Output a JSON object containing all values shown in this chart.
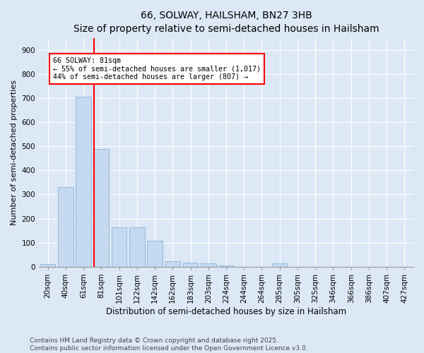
{
  "title1": "66, SOLWAY, HAILSHAM, BN27 3HB",
  "title2": "Size of property relative to semi-detached houses in Hailsham",
  "xlabel": "Distribution of semi-detached houses by size in Hailsham",
  "ylabel": "Number of semi-detached properties",
  "bar_labels": [
    "20sqm",
    "40sqm",
    "61sqm",
    "81sqm",
    "101sqm",
    "122sqm",
    "142sqm",
    "162sqm",
    "183sqm",
    "203sqm",
    "224sqm",
    "244sqm",
    "264sqm",
    "285sqm",
    "305sqm",
    "325sqm",
    "346sqm",
    "366sqm",
    "386sqm",
    "407sqm",
    "427sqm"
  ],
  "bar_values": [
    12,
    330,
    707,
    490,
    165,
    163,
    107,
    22,
    18,
    13,
    5,
    0,
    0,
    14,
    0,
    0,
    0,
    0,
    0,
    0,
    0
  ],
  "bar_color": "#c5d9f0",
  "bar_edge_color": "#8ab4d8",
  "vline_color": "red",
  "annotation_title": "66 SOLWAY: 81sqm",
  "annotation_line1": "← 55% of semi-detached houses are smaller (1,017)",
  "annotation_line2": "44% of semi-detached houses are larger (807) →",
  "ylim": [
    0,
    950
  ],
  "yticks": [
    0,
    100,
    200,
    300,
    400,
    500,
    600,
    700,
    800,
    900
  ],
  "footer1": "Contains HM Land Registry data © Crown copyright and database right 2025.",
  "footer2": "Contains public sector information licensed under the Open Government Licence v3.0.",
  "bg_color": "#dce8f5",
  "plot_bg_color": "#dce8f5",
  "grid_color": "white",
  "title1_fontsize": 10,
  "title2_fontsize": 9,
  "ylabel_fontsize": 8,
  "xlabel_fontsize": 8.5,
  "tick_fontsize": 7.5,
  "footer_fontsize": 6.5
}
